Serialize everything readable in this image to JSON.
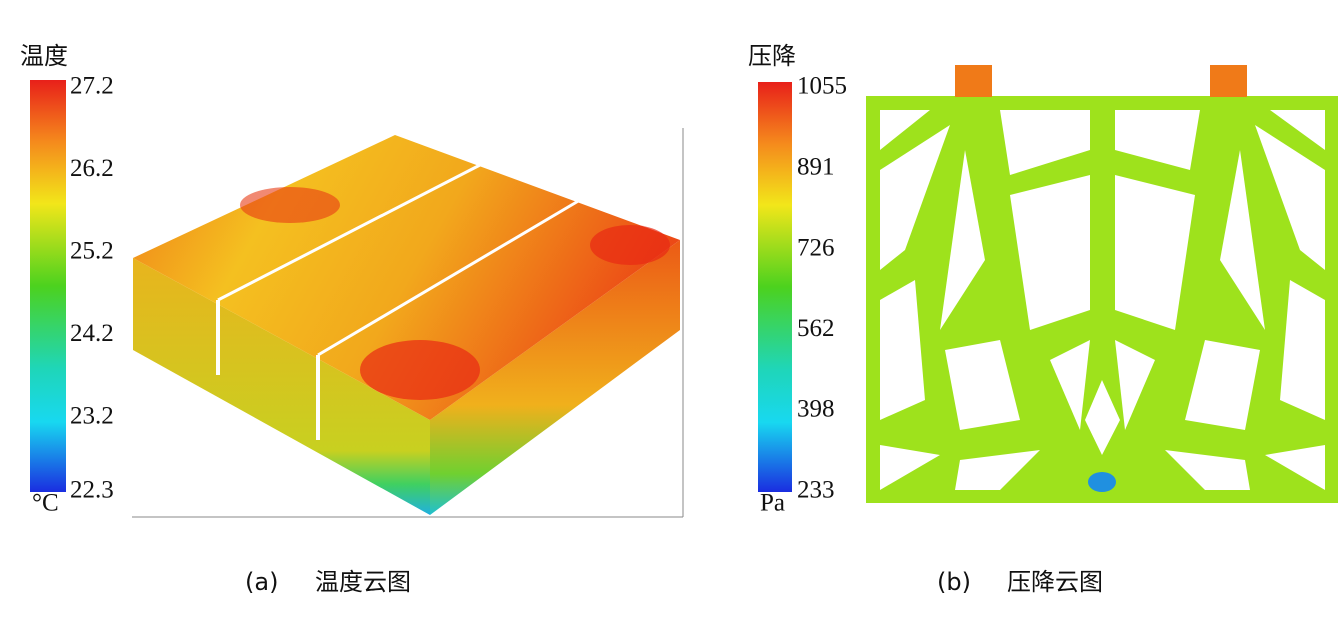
{
  "panels": [
    {
      "colorbar": {
        "title": "温度",
        "unit": "°C",
        "lim": [
          22.3,
          27.2
        ],
        "ticks": [
          27.2,
          26.2,
          25.2,
          24.2,
          23.2,
          22.3
        ]
      },
      "label": "(a)",
      "caption": "温度云图"
    },
    {
      "colorbar": {
        "title": "压降",
        "unit": "Pa",
        "lim": [
          233,
          1055
        ],
        "ticks": [
          1055,
          891,
          726,
          562,
          398,
          233
        ]
      },
      "label": "(b)",
      "caption": "压降云图"
    }
  ]
}
